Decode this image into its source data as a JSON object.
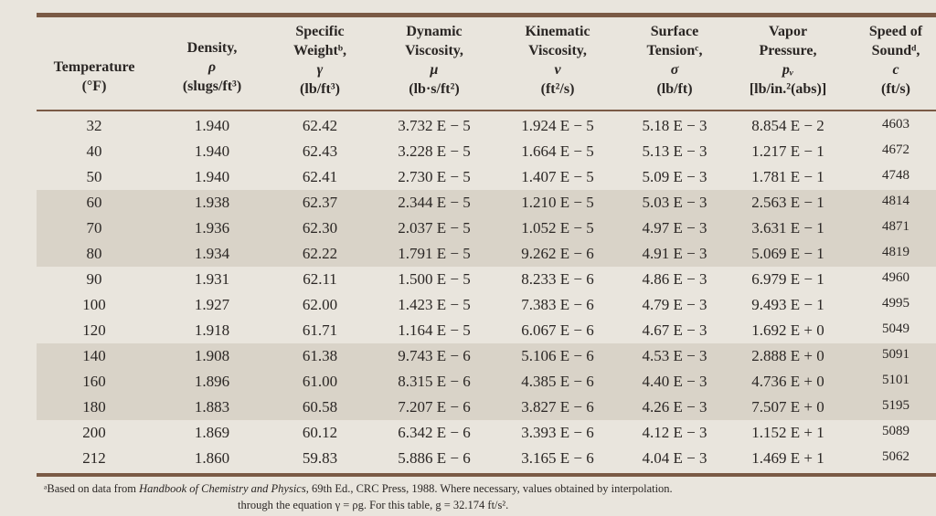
{
  "table": {
    "columns": [
      {
        "lines": [
          "Temperature",
          "(°F)"
        ]
      },
      {
        "lines": [
          "Density,",
          "ρ",
          "(slugs/ft³)"
        ]
      },
      {
        "lines": [
          "Specific",
          "Weightᵇ,",
          "γ",
          "(lb/ft³)"
        ]
      },
      {
        "lines": [
          "Dynamic",
          "Viscosity,",
          "μ",
          "(lb·s/ft²)"
        ]
      },
      {
        "lines": [
          "Kinematic",
          "Viscosity,",
          "ν",
          "(ft²/s)"
        ]
      },
      {
        "lines": [
          "Surface",
          "Tensionᶜ,",
          "σ",
          "(lb/ft)"
        ]
      },
      {
        "lines": [
          "Vapor",
          "Pressure,",
          "pᵥ",
          "[lb/in.²(abs)]"
        ]
      },
      {
        "lines": [
          "Speed of",
          "Soundᵈ,",
          "c",
          "(ft/s)"
        ]
      }
    ],
    "rows": [
      [
        "32",
        "1.940",
        "62.42",
        "3.732 E − 5",
        "1.924 E − 5",
        "5.18 E − 3",
        "8.854 E − 2",
        "4603"
      ],
      [
        "40",
        "1.940",
        "62.43",
        "3.228 E − 5",
        "1.664 E − 5",
        "5.13 E − 3",
        "1.217 E − 1",
        "4672"
      ],
      [
        "50",
        "1.940",
        "62.41",
        "2.730 E − 5",
        "1.407 E − 5",
        "5.09 E − 3",
        "1.781 E − 1",
        "4748"
      ],
      [
        "60",
        "1.938",
        "62.37",
        "2.344 E − 5",
        "1.210 E − 5",
        "5.03 E − 3",
        "2.563 E − 1",
        "4814"
      ],
      [
        "70",
        "1.936",
        "62.30",
        "2.037 E − 5",
        "1.052 E − 5",
        "4.97 E − 3",
        "3.631 E − 1",
        "4871"
      ],
      [
        "80",
        "1.934",
        "62.22",
        "1.791 E − 5",
        "9.262 E − 6",
        "4.91 E − 3",
        "5.069 E − 1",
        "4819"
      ],
      [
        "90",
        "1.931",
        "62.11",
        "1.500 E − 5",
        "8.233 E − 6",
        "4.86 E − 3",
        "6.979 E − 1",
        "4960"
      ],
      [
        "100",
        "1.927",
        "62.00",
        "1.423 E − 5",
        "7.383 E − 6",
        "4.79 E − 3",
        "9.493 E − 1",
        "4995"
      ],
      [
        "120",
        "1.918",
        "61.71",
        "1.164 E − 5",
        "6.067 E − 6",
        "4.67 E − 3",
        "1.692 E + 0",
        "5049"
      ],
      [
        "140",
        "1.908",
        "61.38",
        "9.743 E − 6",
        "5.106 E − 6",
        "4.53 E − 3",
        "2.888 E + 0",
        "5091"
      ],
      [
        "160",
        "1.896",
        "61.00",
        "8.315 E − 6",
        "4.385 E − 6",
        "4.40 E − 3",
        "4.736 E + 0",
        "5101"
      ],
      [
        "180",
        "1.883",
        "60.58",
        "7.207 E − 6",
        "3.827 E − 6",
        "4.26 E − 3",
        "7.507 E + 0",
        "5195"
      ],
      [
        "200",
        "1.869",
        "60.12",
        "6.342 E − 6",
        "3.393 E − 6",
        "4.12 E − 3",
        "1.152 E + 1",
        "5089"
      ],
      [
        "212",
        "1.860",
        "59.83",
        "5.886 E − 6",
        "3.165 E − 6",
        "4.04 E − 3",
        "1.469 E + 1",
        "5062"
      ]
    ]
  },
  "footnotes": {
    "a": [
      "ᵃBased on data from ",
      "Handbook of Chemistry and Physics",
      ", 69th Ed., CRC Press, 1988. Where necessary, values obtained by interpolation."
    ],
    "b": "through the equation γ = ρg. For this table, g = 32.174 ft/s²."
  }
}
